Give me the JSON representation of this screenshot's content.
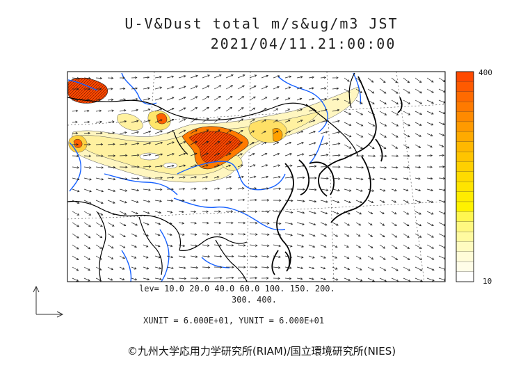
{
  "title_line1": "U-V&Dust total m/s&ug/m3 JST",
  "title_line2": "2021/04/11.21:00:00",
  "levels_line1": "lev= 10.0 20.0 40.0 60.0 100. 150. 200.",
  "levels_line2": "300. 400.",
  "units_text": "XUNIT = 6.000E+01, YUNIT = 6.000E+01",
  "colorbar": {
    "max_label": "400",
    "min_label": "10",
    "colors": [
      "#ff4a00",
      "#ff5a00",
      "#ff6a00",
      "#ff7a00",
      "#ff8a00",
      "#ff9a00",
      "#ffaa00",
      "#ffb800",
      "#ffc400",
      "#ffd000",
      "#ffdb00",
      "#ffe400",
      "#ffec00",
      "#fff200",
      "#fff650",
      "#fff880",
      "#fffaa0",
      "#fffbc0",
      "#fffcd8",
      "#fffde8",
      "#ffffff"
    ]
  },
  "credit": "©九州大学応用力学研究所(RIAM)/国立環境研究所(NIES)",
  "colors": {
    "coast": "#000000",
    "rivers": "#1560ff",
    "dust_high": "#ff4a00",
    "dust_low": "#fff3a8"
  }
}
